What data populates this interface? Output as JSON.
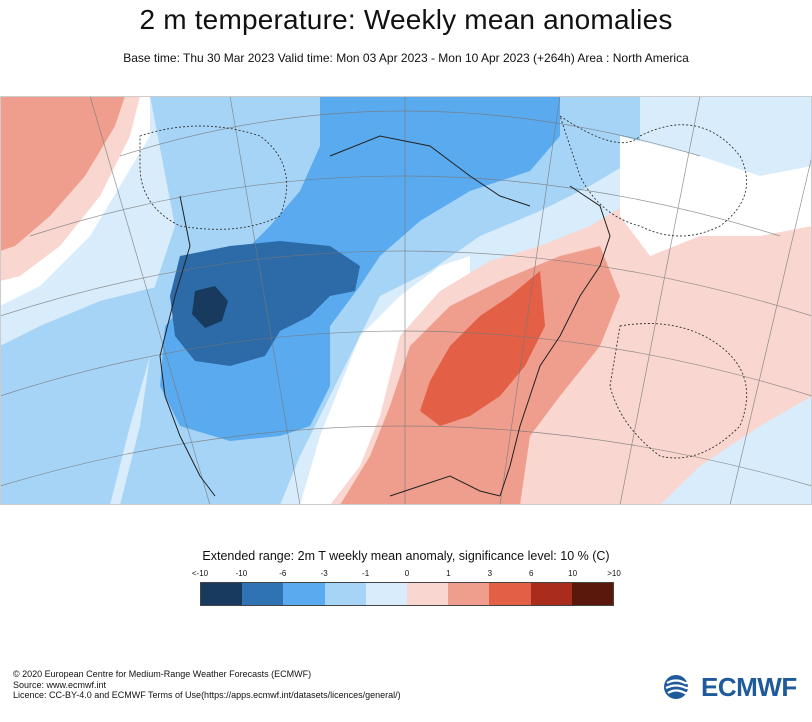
{
  "title": "2 m temperature: Weekly mean anomalies",
  "subtitle": "Base time: Thu 30 Mar 2023 Valid time: Mon 03 Apr 2023 - Mon 10 Apr 2023 (+264h) Area : North America",
  "legend": {
    "title": "Extended range: 2m T weekly mean anomaly, significance level: 10 % (C)",
    "ticks": [
      "<-10",
      "-10",
      "-6",
      "-3",
      "-1",
      "0",
      "1",
      "3",
      "6",
      "10",
      ">10"
    ],
    "colors": [
      "#173a5e",
      "#2f73b5",
      "#5aaaf0",
      "#a6d4f7",
      "#d8ecfb",
      "#f9d6cf",
      "#ef9e8e",
      "#e35f45",
      "#a92c1c",
      "#5a180c"
    ]
  },
  "map_colors": {
    "deep_cold": "#2d6aa8",
    "cold": "#5aaaf0",
    "cool": "#a6d4f7",
    "slightly_cool": "#d8ecfb",
    "neutral": "#ffffff",
    "slightly_warm": "#f9d6cf",
    "warm": "#ef9e8e",
    "hot": "#e35f45",
    "darkest_cold": "#173a5e"
  },
  "footer": {
    "line1": "© 2020 European Centre for Medium-Range Weather Forecasts (ECMWF)",
    "line2": "Source: www.ecmwf.int",
    "line3": "Licence: CC-BY-4.0 and ECMWF Terms of Use(https://apps.ecmwf.int/datasets/licences/general/)"
  },
  "logo": {
    "text": "ECMWF"
  }
}
